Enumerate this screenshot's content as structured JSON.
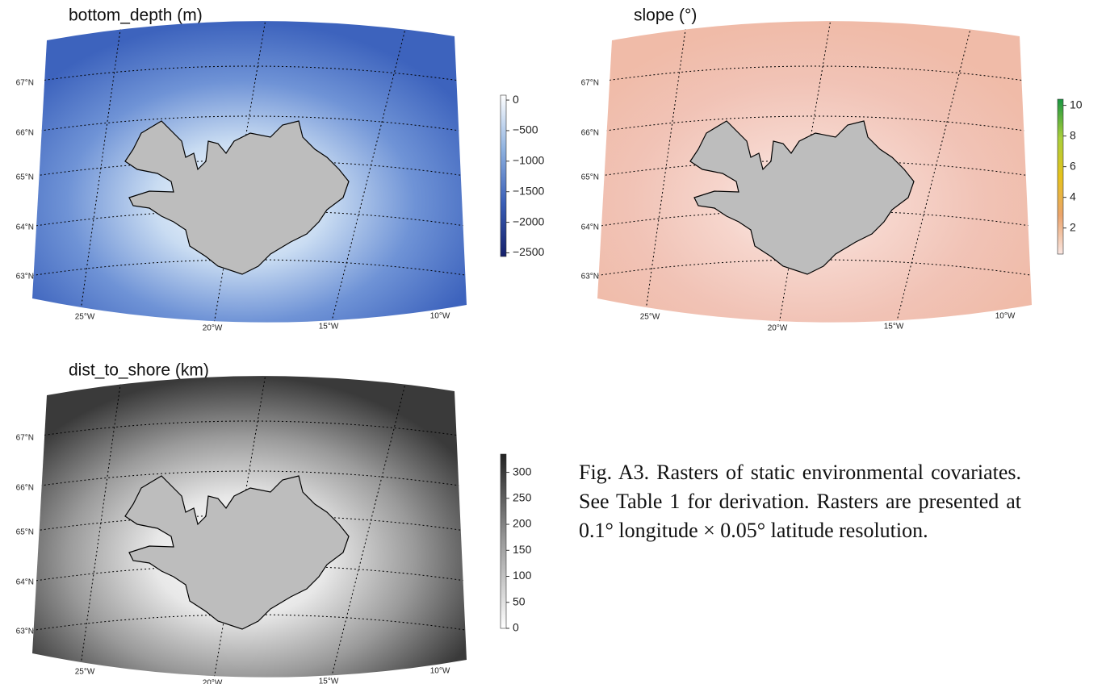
{
  "panels": [
    {
      "title": "bottom_depth (m)",
      "lat_labels": [
        "67°N",
        "66°N",
        "65°N",
        "64°N",
        "63°N"
      ],
      "lon_labels": [
        "25°W",
        "20°W",
        "15°W",
        "10°W"
      ],
      "colorbar": {
        "lim": [
          -2560,
          80
        ],
        "ticks": [
          0,
          {
            "value": -500,
            "label": "−500"
          },
          {
            "value": -1000,
            "label": "−1000"
          },
          {
            "value": -1500,
            "label": "−1500"
          },
          {
            "value": -2000,
            "label": "−2000"
          },
          {
            "value": -2500,
            "label": "−2500"
          }
        ],
        "colors": [
          "#15206b",
          "#3a5fb8",
          "#8fb2e0",
          "#ffffff"
        ]
      }
    },
    {
      "title": "slope (°)",
      "lat_labels": [
        "67°N",
        "66°N",
        "65°N",
        "64°N",
        "63°N"
      ],
      "lon_labels": [
        "25°W",
        "20°W",
        "15°W",
        "10°W"
      ],
      "colorbar": {
        "lim": [
          0.3,
          10.4
        ],
        "ticks": [
          2,
          4,
          6,
          8,
          10
        ],
        "colors": [
          "#fae6e2",
          "#eba46c",
          "#e6c21c",
          "#a9cf3a",
          "#1a9641"
        ]
      }
    },
    {
      "title": "dist_to_shore (km)",
      "lat_labels": [
        "67°N",
        "66°N",
        "65°N",
        "64°N",
        "63°N"
      ],
      "lon_labels": [
        "25°W",
        "20°W",
        "15°W",
        "10°W"
      ],
      "colorbar": {
        "lim": [
          0,
          335
        ],
        "ticks": [
          0,
          50,
          100,
          150,
          200,
          250,
          300
        ],
        "colors": [
          "#ffffff",
          "#9a9a9a",
          "#222222"
        ]
      }
    }
  ],
  "caption": "Fig. A3. Rasters of static environmental covariates. See Table 1 for derivation. Rasters are presented at 0.1° longitude × 0.05° latitude resolution."
}
